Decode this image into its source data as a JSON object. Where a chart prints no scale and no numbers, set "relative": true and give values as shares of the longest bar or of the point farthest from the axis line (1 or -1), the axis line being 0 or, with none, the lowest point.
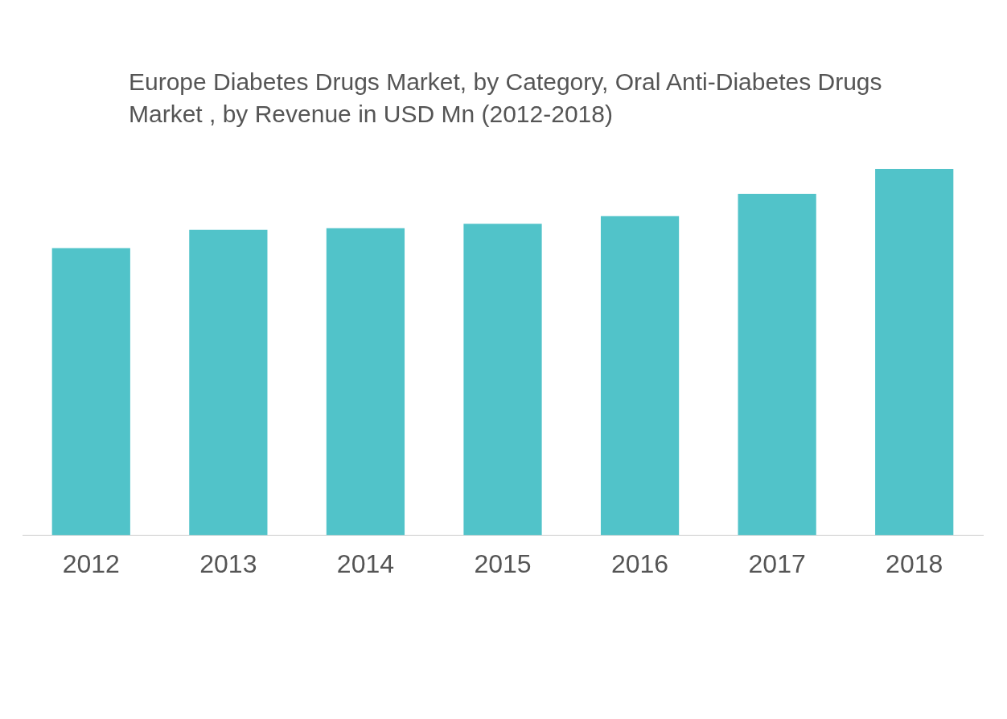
{
  "chart_data": {
    "type": "bar",
    "title": "Europe Diabetes Drugs Market, by Category,  Oral Anti-Diabetes Drugs Market , by Revenue in USD Mn (2012-2018)",
    "categories": [
      "2012",
      "2013",
      "2014",
      "2015",
      "2016",
      "2017",
      "2018"
    ],
    "values": [
      0.784,
      0.834,
      0.838,
      0.85,
      0.871,
      0.932,
      1
    ],
    "color": "#51c3c9",
    "relative": true,
    "grid": false,
    "legend": false
  }
}
